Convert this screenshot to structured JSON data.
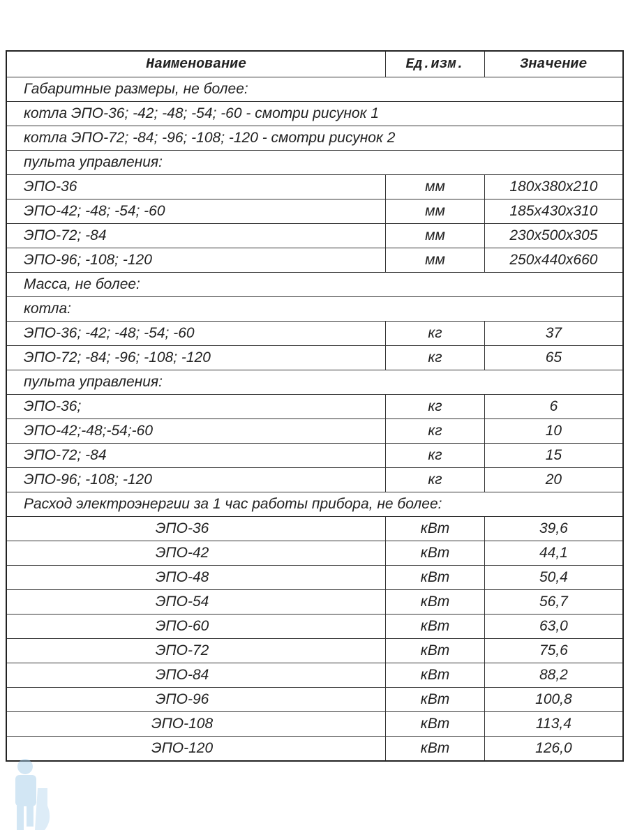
{
  "headers": {
    "name": "Наименование",
    "unit": "Ед.изм.",
    "value": "Значение"
  },
  "rows": [
    {
      "type": "section",
      "name": "Габаритные размеры, не более:"
    },
    {
      "type": "section",
      "name": "котла ЭПО-36; -42; -48; -54; -60 - смотри рисунок 1"
    },
    {
      "type": "section",
      "name": "котла ЭПО-72; -84; -96; -108; -120 - смотри рисунок 2"
    },
    {
      "type": "section",
      "name": "пульта управления:"
    },
    {
      "type": "row",
      "name": "ЭПО-36",
      "unit": "мм",
      "value": "180x380x210"
    },
    {
      "type": "row",
      "name": "ЭПО-42; -48; -54; -60",
      "unit": "мм",
      "value": "185x430x310"
    },
    {
      "type": "row",
      "name": "ЭПО-72; -84",
      "unit": "мм",
      "value": "230x500x305"
    },
    {
      "type": "row",
      "name": "ЭПО-96; -108; -120",
      "unit": "мм",
      "value": "250x440x660"
    },
    {
      "type": "section",
      "name": "Масса, не более:"
    },
    {
      "type": "section",
      "name": "котла:"
    },
    {
      "type": "row",
      "name": "ЭПО-36; -42; -48; -54; -60",
      "unit": "кг",
      "value": "37"
    },
    {
      "type": "row",
      "name": "ЭПО-72; -84; -96; -108; -120",
      "unit": "кг",
      "value": "65"
    },
    {
      "type": "section",
      "name": "пульта управления:"
    },
    {
      "type": "row",
      "name": "ЭПО-36;",
      "unit": "кг",
      "value": "6"
    },
    {
      "type": "row",
      "name": "ЭПО-42;-48;-54;-60",
      "unit": "кг",
      "value": "10"
    },
    {
      "type": "row",
      "name": "ЭПО-72; -84",
      "unit": "кг",
      "value": "15"
    },
    {
      "type": "row",
      "name": "ЭПО-96; -108; -120",
      "unit": "кг",
      "value": "20"
    },
    {
      "type": "section",
      "name": "Расход электроэнергии за 1 час работы прибора, не более:"
    },
    {
      "type": "centered",
      "name": "ЭПО-36",
      "unit": "кВт",
      "value": "39,6"
    },
    {
      "type": "centered",
      "name": "ЭПО-42",
      "unit": "кВт",
      "value": "44,1"
    },
    {
      "type": "centered",
      "name": "ЭПО-48",
      "unit": "кВт",
      "value": "50,4"
    },
    {
      "type": "centered",
      "name": "ЭПО-54",
      "unit": "кВт",
      "value": "56,7"
    },
    {
      "type": "centered",
      "name": "ЭПО-60",
      "unit": "кВт",
      "value": "63,0"
    },
    {
      "type": "centered",
      "name": "ЭПО-72",
      "unit": "кВт",
      "value": "75,6"
    },
    {
      "type": "centered",
      "name": "ЭПО-84",
      "unit": "кВт",
      "value": "88,2"
    },
    {
      "type": "centered",
      "name": "ЭПО-96",
      "unit": "кВт",
      "value": "100,8"
    },
    {
      "type": "centered",
      "name": "ЭПО-108",
      "unit": "кВт",
      "value": "113,4"
    },
    {
      "type": "centered",
      "name": "ЭПО-120",
      "unit": "кВт",
      "value": "126,0"
    }
  ],
  "colors": {
    "text": "#222222",
    "border": "#333333",
    "logo": "#9cc8e8"
  }
}
